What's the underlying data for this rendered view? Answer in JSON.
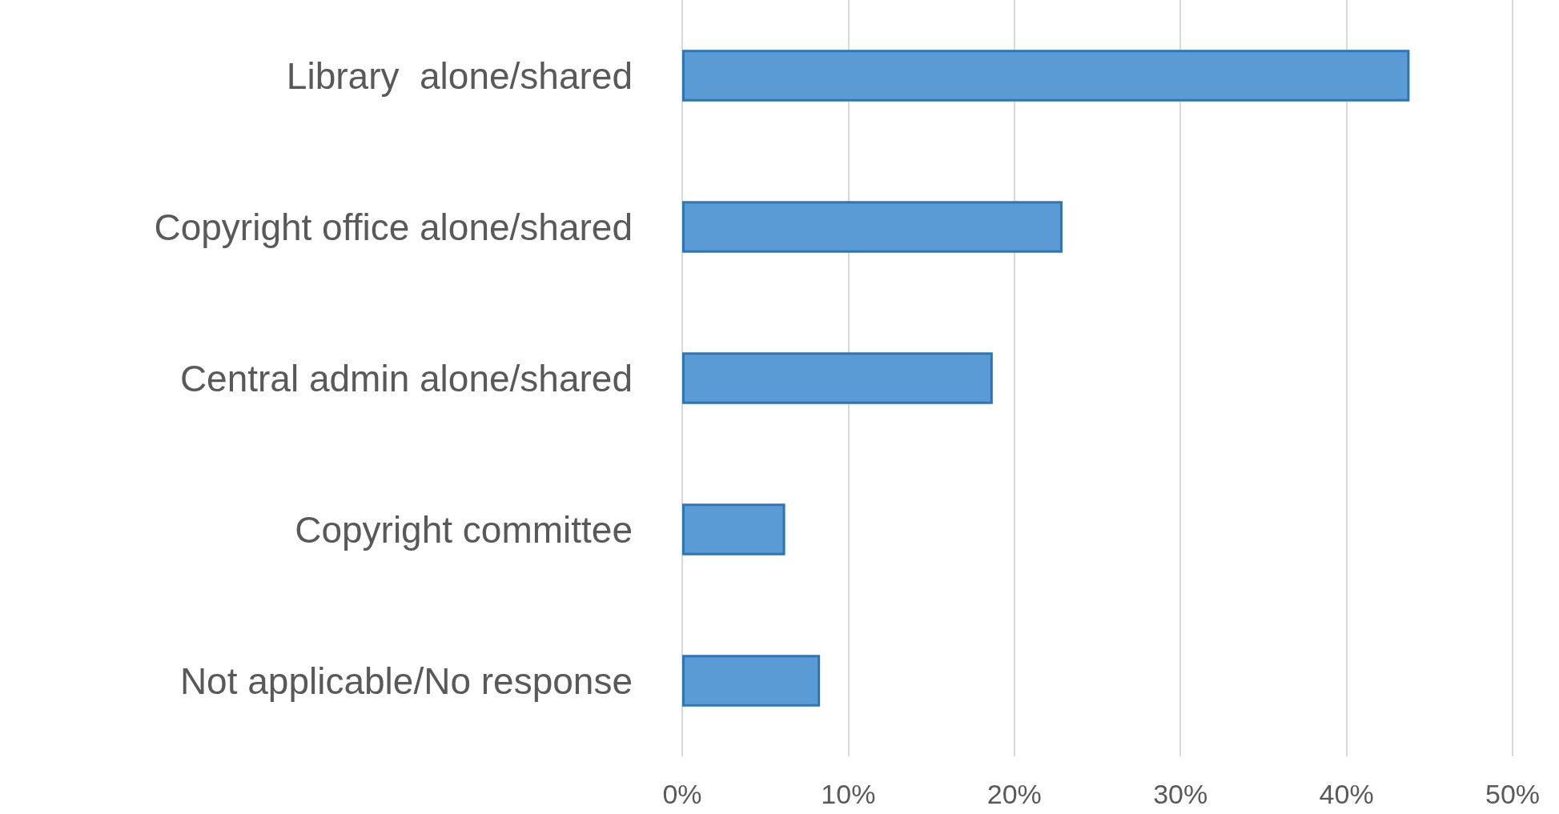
{
  "chart_data": {
    "type": "bar",
    "orientation": "horizontal",
    "categories": [
      "Library  alone/shared",
      "Copyright office alone/shared",
      "Central admin alone/shared",
      "Copyright committee",
      "Not applicable/No response"
    ],
    "values": [
      43.8,
      22.9,
      18.7,
      6.2,
      8.3
    ],
    "color": "#5b9bd5",
    "xlim": [
      0,
      50
    ],
    "xticks": [
      {
        "value": 0,
        "label": "0%"
      },
      {
        "value": 10,
        "label": "10%"
      },
      {
        "value": 20,
        "label": "20%"
      },
      {
        "value": 30,
        "label": "30%"
      },
      {
        "value": 40,
        "label": "40%"
      },
      {
        "value": 50,
        "label": "50%"
      }
    ],
    "grid": "x"
  }
}
